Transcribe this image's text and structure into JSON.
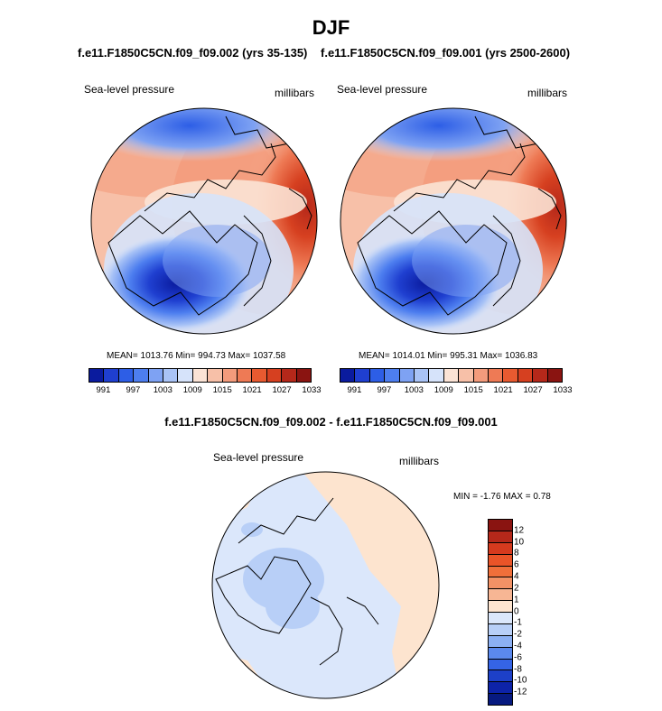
{
  "title": "DJF",
  "panels": [
    {
      "case_title": "f.e11.F1850C5CN.f09_f09.002 (yrs 35-135)",
      "variable": "Sea-level pressure",
      "units": "millibars",
      "stats_text": "MEAN= 1013.76  Min= 994.73  Max= 1037.58"
    },
    {
      "case_title": "f.e11.F1850C5CN.f09_f09.001 (yrs 2500-2600)",
      "variable": "Sea-level pressure",
      "units": "millibars",
      "stats_text": "MEAN= 1014.01  Min= 995.31  Max= 1036.83"
    }
  ],
  "colorbar_abs": {
    "labels": [
      "991",
      "997",
      "1003",
      "1009",
      "1015",
      "1021",
      "1027",
      "1033"
    ],
    "colors": [
      "#0a1b9e",
      "#1f3fd0",
      "#2d5ee6",
      "#4d7eef",
      "#7ea2f3",
      "#a9c3f6",
      "#d6e3fa",
      "#fbe3d5",
      "#f7c0a8",
      "#f39b7c",
      "#ee7a55",
      "#e85a30",
      "#d64020",
      "#b5281a",
      "#8a1411"
    ]
  },
  "difference": {
    "title": "f.e11.F1850C5CN.f09_f09.002 - f.e11.F1850C5CN.f09_f09.001",
    "variable": "Sea-level pressure",
    "units": "millibars",
    "stats_text": "MIN =  -1.76 MAX =   0.78",
    "colorbar_labels": [
      "12",
      "10",
      "8",
      "6",
      "4",
      "2",
      "1",
      "0",
      "-1",
      "-2",
      "-4",
      "-6",
      "-8",
      "-10",
      "-12"
    ],
    "colorbar_colors": [
      "#8a1411",
      "#b5281a",
      "#d63a1e",
      "#ea5428",
      "#f06f3a",
      "#f39266",
      "#f7b694",
      "#fde4cf",
      "#dbe7fb",
      "#b8cff7",
      "#8cb0f3",
      "#5b89ee",
      "#3564e6",
      "#1d40c8",
      "#0d23a8",
      "#071a80"
    ]
  }
}
